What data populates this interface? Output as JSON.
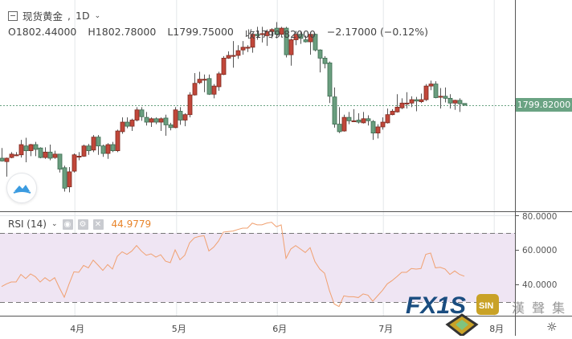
{
  "header": {
    "symbol": "现货黄金",
    "interval": "1D",
    "open": "O1802.44000",
    "high": "H1802.78000",
    "low": "L1799.75000",
    "close": "收1799.82000",
    "change": "−2.17000 (−0.12%)"
  },
  "price_axis": {
    "last_price": "1799.82000",
    "last_price_value": 1799.82
  },
  "rsi": {
    "label": "RSI (14)",
    "value": "44.9779",
    "axis_labels": [
      "80.0000",
      "60.0000",
      "40.0000"
    ],
    "upper_band": 70,
    "lower_band": 30
  },
  "colors": {
    "up": "#c1473a",
    "down": "#6a9e7f",
    "rsi_line": "#f0a070",
    "rsi_band": "#efe5f3",
    "last_price": "#6aa383"
  },
  "icons": {
    "wave": "wave-icon",
    "eye": "eye-icon",
    "gear": "gear-icon",
    "close": "close-icon",
    "settings": "sun-gear-icon"
  },
  "logo": {
    "text": "FX168",
    "cn": "漢 聲 集 團"
  },
  "chart_data": {
    "type": "candlestick",
    "x_ticks": [
      {
        "label": "4月",
        "index": 15.2
      },
      {
        "label": "5月",
        "index": 36.3
      },
      {
        "label": "6月",
        "index": 57.2
      },
      {
        "label": "7月",
        "index": 79.2
      },
      {
        "label": "8月",
        "index": 102.2
      }
    ],
    "ohlc": [
      [
        1722,
        1737,
        1717,
        1718
      ],
      [
        1717,
        1723,
        1695,
        1722
      ],
      [
        1723,
        1731,
        1722,
        1728
      ],
      [
        1727,
        1731,
        1725,
        1727
      ],
      [
        1727,
        1749,
        1723,
        1742
      ],
      [
        1740,
        1752,
        1716,
        1733
      ],
      [
        1733,
        1743,
        1725,
        1742
      ],
      [
        1742,
        1746,
        1725,
        1735
      ],
      [
        1737,
        1738,
        1722,
        1723
      ],
      [
        1723,
        1738,
        1721,
        1731
      ],
      [
        1731,
        1742,
        1719,
        1722
      ],
      [
        1723,
        1733,
        1721,
        1728
      ],
      [
        1728,
        1728,
        1701,
        1706
      ],
      [
        1708,
        1711,
        1673,
        1678
      ],
      [
        1680,
        1709,
        1672,
        1702
      ],
      [
        1703,
        1729,
        1701,
        1727
      ],
      [
        1725,
        1731,
        1719,
        1725
      ],
      [
        1725,
        1742,
        1724,
        1740
      ],
      [
        1740,
        1743,
        1727,
        1733
      ],
      [
        1734,
        1756,
        1731,
        1753
      ],
      [
        1753,
        1756,
        1727,
        1740
      ],
      [
        1740,
        1742,
        1724,
        1729
      ],
      [
        1729,
        1744,
        1721,
        1742
      ],
      [
        1742,
        1746,
        1731,
        1733
      ],
      [
        1733,
        1764,
        1731,
        1762
      ],
      [
        1761,
        1782,
        1758,
        1775
      ],
      [
        1775,
        1782,
        1766,
        1769
      ],
      [
        1769,
        1780,
        1762,
        1778
      ],
      [
        1778,
        1797,
        1776,
        1793
      ],
      [
        1793,
        1797,
        1777,
        1783
      ],
      [
        1782,
        1790,
        1770,
        1775
      ],
      [
        1775,
        1782,
        1768,
        1780
      ],
      [
        1780,
        1782,
        1772,
        1775
      ],
      [
        1775,
        1782,
        1762,
        1780
      ],
      [
        1781,
        1786,
        1755,
        1771
      ],
      [
        1771,
        1774,
        1763,
        1767
      ],
      [
        1767,
        1797,
        1766,
        1793
      ],
      [
        1791,
        1797,
        1771,
        1778
      ],
      [
        1778,
        1788,
        1769,
        1786
      ],
      [
        1786,
        1819,
        1782,
        1815
      ],
      [
        1815,
        1847,
        1814,
        1832
      ],
      [
        1833,
        1849,
        1831,
        1838
      ],
      [
        1838,
        1845,
        1819,
        1838
      ],
      [
        1839,
        1845,
        1815,
        1816
      ],
      [
        1816,
        1831,
        1810,
        1828
      ],
      [
        1827,
        1849,
        1821,
        1846
      ],
      [
        1845,
        1872,
        1844,
        1869
      ],
      [
        1869,
        1879,
        1868,
        1873
      ],
      [
        1873,
        1894,
        1855,
        1873
      ],
      [
        1873,
        1888,
        1868,
        1880
      ],
      [
        1881,
        1894,
        1874,
        1885
      ],
      [
        1885,
        1888,
        1878,
        1885
      ],
      [
        1885,
        1906,
        1877,
        1904
      ],
      [
        1904,
        1915,
        1896,
        1902
      ],
      [
        1905,
        1915,
        1892,
        1905
      ],
      [
        1902,
        1911,
        1887,
        1908
      ],
      [
        1908,
        1913,
        1898,
        1911
      ],
      [
        1913,
        1922,
        1898,
        1904
      ],
      [
        1904,
        1915,
        1900,
        1913
      ],
      [
        1913,
        1915,
        1870,
        1874
      ],
      [
        1874,
        1898,
        1858,
        1896
      ],
      [
        1896,
        1909,
        1888,
        1904
      ],
      [
        1904,
        1909,
        1890,
        1898
      ],
      [
        1896,
        1902,
        1892,
        1893
      ],
      [
        1893,
        1907,
        1874,
        1904
      ],
      [
        1904,
        1905,
        1879,
        1881
      ],
      [
        1881,
        1882,
        1848,
        1869
      ],
      [
        1869,
        1872,
        1854,
        1861
      ],
      [
        1862,
        1864,
        1803,
        1813
      ],
      [
        1812,
        1826,
        1767,
        1772
      ],
      [
        1772,
        1797,
        1759,
        1761
      ],
      [
        1762,
        1786,
        1761,
        1782
      ],
      [
        1782,
        1790,
        1772,
        1777
      ],
      [
        1777,
        1794,
        1775,
        1777
      ],
      [
        1778,
        1788,
        1773,
        1775
      ],
      [
        1774,
        1790,
        1773,
        1780
      ],
      [
        1780,
        1785,
        1770,
        1777
      ],
      [
        1776,
        1778,
        1749,
        1759
      ],
      [
        1759,
        1772,
        1751,
        1768
      ],
      [
        1768,
        1782,
        1764,
        1775
      ],
      [
        1774,
        1795,
        1773,
        1786
      ],
      [
        1786,
        1794,
        1785,
        1791
      ],
      [
        1790,
        1816,
        1789,
        1797
      ],
      [
        1796,
        1810,
        1794,
        1803
      ],
      [
        1803,
        1819,
        1795,
        1803
      ],
      [
        1803,
        1813,
        1797,
        1808
      ],
      [
        1808,
        1812,
        1791,
        1806
      ],
      [
        1805,
        1817,
        1803,
        1808
      ],
      [
        1808,
        1831,
        1806,
        1828
      ],
      [
        1828,
        1836,
        1822,
        1831
      ],
      [
        1831,
        1835,
        1810,
        1811
      ],
      [
        1813,
        1825,
        1795,
        1813
      ],
      [
        1813,
        1826,
        1804,
        1810
      ],
      [
        1810,
        1816,
        1795,
        1803
      ],
      [
        1803,
        1808,
        1793,
        1807
      ],
      [
        1807,
        1810,
        1790,
        1802
      ],
      [
        1802.44,
        1802.78,
        1799.75,
        1799.82
      ]
    ],
    "rsi_values": [
      39.0,
      40.5,
      41.6,
      41.6,
      46.0,
      43.6,
      46.3,
      44.7,
      41.6,
      44.1,
      42.1,
      44.1,
      38.2,
      32.8,
      40.5,
      47.5,
      47.2,
      51.2,
      49.8,
      54.3,
      51.4,
      48.3,
      51.7,
      49.1,
      56.5,
      59.1,
      57.6,
      59.5,
      62.7,
      59.5,
      57.1,
      57.9,
      56.0,
      57.4,
      53.7,
      52.8,
      60.2,
      54.5,
      57.1,
      64.3,
      67.2,
      68.0,
      68.4,
      59.6,
      61.8,
      65.3,
      70.5,
      70.8,
      71.1,
      72.0,
      72.8,
      72.8,
      75.7,
      74.7,
      74.7,
      75.7,
      76.2,
      73.6,
      74.7,
      55.3,
      60.7,
      62.7,
      60.7,
      58.7,
      61.5,
      53.4,
      49.1,
      46.7,
      36.7,
      28.9,
      27.4,
      33.6,
      33.1,
      33.1,
      32.6,
      34.7,
      34.0,
      30.5,
      33.6,
      36.7,
      40.5,
      42.4,
      44.7,
      47.2,
      47.2,
      49.4,
      49.1,
      49.4,
      57.6,
      58.4,
      49.8,
      50.1,
      49.1,
      46.0,
      48.0,
      46.0,
      44.9779
    ]
  }
}
